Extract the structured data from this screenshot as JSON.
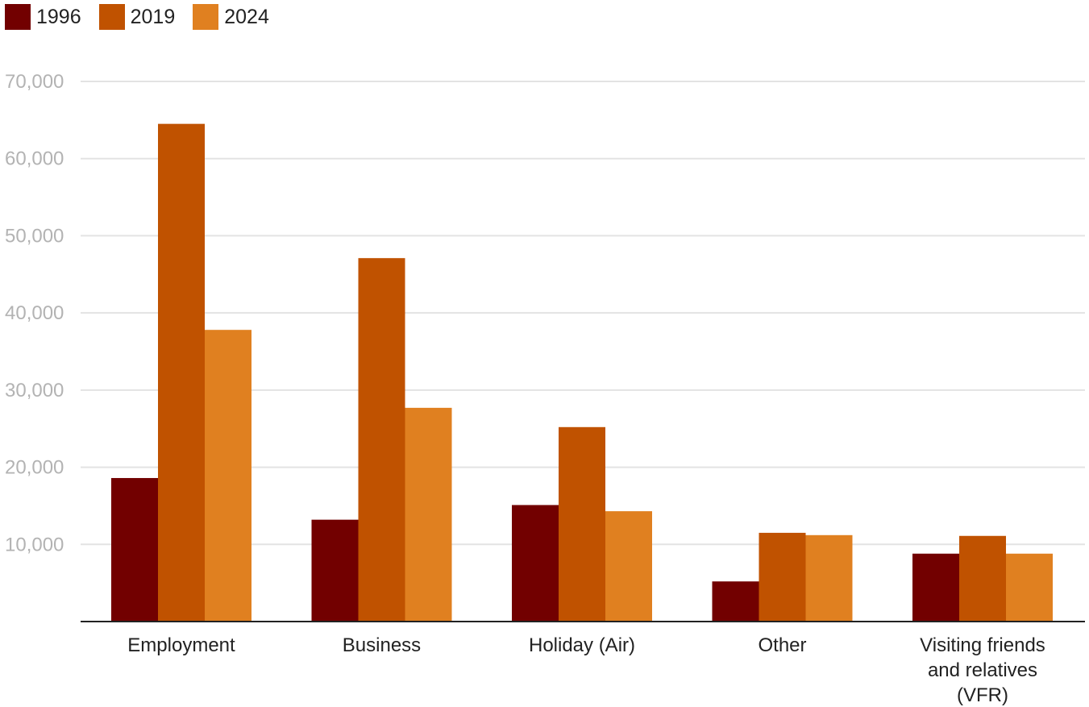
{
  "chart_data": {
    "type": "bar",
    "categories": [
      "Employment",
      "Business",
      "Holiday (Air)",
      "Other",
      "Visiting friends and relatives (VFR)"
    ],
    "category_lines": [
      [
        "Employment"
      ],
      [
        "Business"
      ],
      [
        "Holiday (Air)"
      ],
      [
        "Other"
      ],
      [
        "Visiting friends",
        "and relatives",
        "(VFR)"
      ]
    ],
    "series": [
      {
        "name": "1996",
        "color": "#720000",
        "values": [
          18600,
          13200,
          15100,
          5200,
          8800
        ]
      },
      {
        "name": "2019",
        "color": "#c05200",
        "values": [
          64500,
          47100,
          25200,
          11500,
          11100
        ]
      },
      {
        "name": "2024",
        "color": "#e08020",
        "values": [
          37800,
          27700,
          14300,
          11200,
          8800
        ]
      }
    ],
    "yticks": [
      10000,
      20000,
      30000,
      40000,
      50000,
      60000,
      70000
    ],
    "ytick_labels": [
      "10,000",
      "20,000",
      "30,000",
      "40,000",
      "50,000",
      "60,000",
      "70,000"
    ],
    "ylim": [
      0,
      70000
    ],
    "grid": true,
    "legend_position": "top-left",
    "title": "",
    "xlabel": "",
    "ylabel": ""
  }
}
